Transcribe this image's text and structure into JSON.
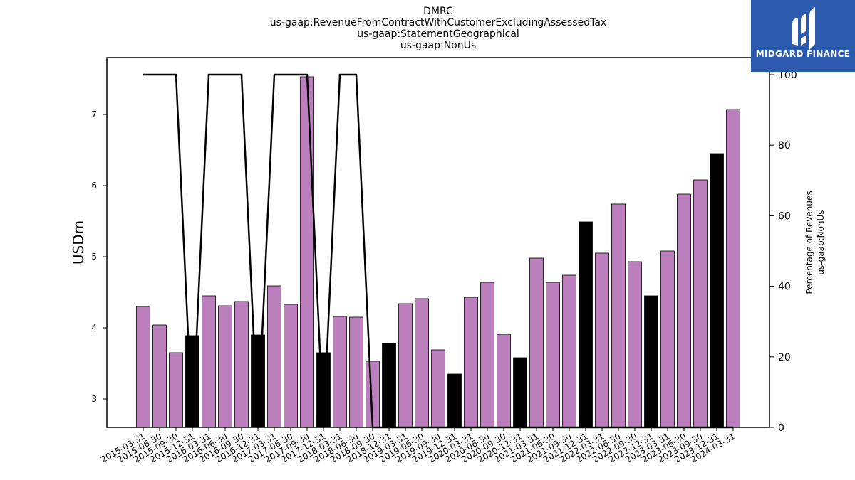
{
  "chart_data": {
    "type": "bar",
    "title_lines": [
      "DMRC",
      "us-gaap:RevenueFromContractWithCustomerExcludingAssessedTax",
      "us-gaap:StatementGeographical",
      "us-gaap:NonUs"
    ],
    "ylabel": "USDm",
    "y2label_lines": [
      "Percentage of Revenues",
      "us-gaap:NonUs"
    ],
    "ylim": [
      2.6,
      7.8
    ],
    "y2lim": [
      0,
      100
    ],
    "yticks": [
      3,
      4,
      5,
      6,
      7
    ],
    "y2ticks": [
      0,
      20,
      40,
      60,
      80,
      100
    ],
    "bar_colors": {
      "default": "#bb7fbd",
      "highlight": "#000000"
    },
    "line_color": "#000000",
    "categories": [
      "2015-03-31",
      "2015-06-30",
      "2015-09-30",
      "2015-12-31",
      "2016-03-31",
      "2016-06-30",
      "2016-09-30",
      "2016-12-31",
      "2017-03-31",
      "2017-06-30",
      "2017-09-30",
      "2017-12-31",
      "2018-03-31",
      "2018-06-30",
      "2018-09-30",
      "2018-12-31",
      "2019-03-31",
      "2019-06-30",
      "2019-09-30",
      "2019-12-31",
      "2020-03-31",
      "2020-06-30",
      "2020-09-30",
      "2020-12-31",
      "2021-03-31",
      "2021-06-30",
      "2021-09-30",
      "2021-12-31",
      "2022-03-31",
      "2022-06-30",
      "2022-09-30",
      "2022-12-31",
      "2023-03-31",
      "2023-06-30",
      "2023-09-30",
      "2023-12-31",
      "2024-03-31"
    ],
    "series": [
      {
        "values": [
          4.3,
          4.04,
          3.65,
          3.89,
          4.45,
          4.31,
          4.37,
          3.9,
          4.59,
          4.33,
          7.53,
          3.65,
          4.16,
          4.15,
          3.53,
          3.78,
          4.34,
          4.41,
          3.69,
          3.35,
          4.43,
          4.64,
          3.91,
          3.58,
          4.98,
          4.64,
          4.74,
          5.49,
          5.05,
          5.74,
          4.93,
          4.45,
          5.08,
          5.88,
          6.08,
          6.45,
          7.07
        ],
        "highlight": [
          false,
          false,
          false,
          true,
          false,
          false,
          false,
          true,
          false,
          false,
          false,
          true,
          false,
          false,
          false,
          true,
          false,
          false,
          false,
          true,
          false,
          false,
          false,
          true,
          false,
          false,
          false,
          true,
          false,
          false,
          false,
          true,
          false,
          false,
          false,
          true,
          false
        ]
      },
      {
        "type": "line",
        "axis": "right",
        "values": [
          100,
          100,
          100,
          0,
          100,
          100,
          100,
          0,
          100,
          100,
          100,
          0,
          100,
          100,
          0,
          0,
          0,
          0,
          0,
          0,
          0,
          0,
          0,
          0,
          0,
          0,
          0,
          0,
          0,
          0,
          0,
          0,
          0,
          0,
          0,
          0,
          0
        ]
      }
    ],
    "grid": false
  },
  "logo": {
    "text": "MIDGARD FINANCE",
    "color": "#2b5aac"
  }
}
